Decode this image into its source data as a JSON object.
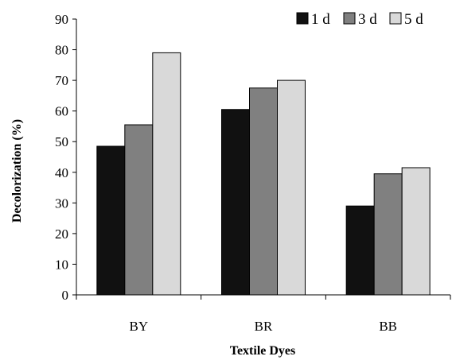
{
  "chart_data": {
    "type": "bar",
    "categories": [
      "BY",
      "BR",
      "BB"
    ],
    "series": [
      {
        "name": "1 d",
        "values": [
          48.5,
          60.5,
          29
        ],
        "color": "#111111"
      },
      {
        "name": "3 d",
        "values": [
          55.5,
          67.5,
          39.5
        ],
        "color": "#808080"
      },
      {
        "name": "5 d",
        "values": [
          79,
          70,
          41.5
        ],
        "color": "#d9d9d9"
      }
    ],
    "xlabel": "Textile Dyes",
    "ylabel": "Decolorization (%)",
    "ylim": [
      0,
      90
    ],
    "yticks": [
      0,
      10,
      20,
      30,
      40,
      50,
      60,
      70,
      80,
      90
    ],
    "grid": false,
    "legend": "top-right"
  }
}
